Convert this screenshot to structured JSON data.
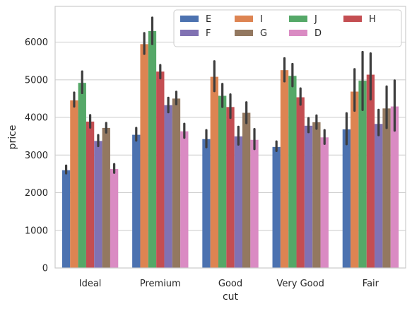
{
  "chart_data": {
    "type": "bar",
    "categories": [
      "Ideal",
      "Premium",
      "Good",
      "Very Good",
      "Fair"
    ],
    "xlabel": "cut",
    "ylabel": "price",
    "ylim": [
      0,
      6950
    ],
    "yticks": [
      0,
      1000,
      2000,
      3000,
      4000,
      5000,
      6000
    ],
    "grid": true,
    "legend_placement": "top-right",
    "legend_columns": 4,
    "series": [
      {
        "name": "E",
        "color": "#4c72b0",
        "values": [
          2598,
          3539,
          3424,
          3215,
          3682
        ],
        "ci": [
          [
            2515,
            2720
          ],
          [
            3385,
            3720
          ],
          [
            3210,
            3660
          ],
          [
            3110,
            3360
          ],
          [
            3290,
            4110
          ]
        ]
      },
      {
        "name": "I",
        "color": "#dd8452",
        "values": [
          4452,
          5947,
          5079,
          5256,
          4686
        ],
        "ci": [
          [
            4290,
            4660
          ],
          [
            5690,
            6240
          ],
          [
            4700,
            5490
          ],
          [
            4960,
            5570
          ],
          [
            4180,
            5280
          ]
        ]
      },
      {
        "name": "J",
        "color": "#55a868",
        "values": [
          4918,
          6295,
          4574,
          5104,
          4976
        ],
        "ci": [
          [
            4650,
            5220
          ],
          [
            5950,
            6650
          ],
          [
            4280,
            4890
          ],
          [
            4830,
            5420
          ],
          [
            4200,
            5740
          ]
        ]
      },
      {
        "name": "H",
        "color": "#c44e52",
        "values": [
          3889,
          5217,
          4276,
          4535,
          5136
        ],
        "ci": [
          [
            3730,
            4060
          ],
          [
            5040,
            5390
          ],
          [
            3990,
            4610
          ],
          [
            4340,
            4770
          ],
          [
            4480,
            5700
          ]
        ]
      },
      {
        "name": "F",
        "color": "#8172b3",
        "values": [
          3375,
          4325,
          3496,
          3779,
          3827
        ],
        "ci": [
          [
            3240,
            3530
          ],
          [
            4140,
            4520
          ],
          [
            3280,
            3750
          ],
          [
            3610,
            3980
          ],
          [
            3530,
            4200
          ]
        ]
      },
      {
        "name": "G",
        "color": "#937860",
        "values": [
          3721,
          4501,
          4123,
          3873,
          4239
        ],
        "ci": [
          [
            3600,
            3850
          ],
          [
            4350,
            4680
          ],
          [
            3850,
            4400
          ],
          [
            3700,
            4050
          ],
          [
            3720,
            4820
          ]
        ]
      },
      {
        "name": "D",
        "color": "#da8bc3",
        "values": [
          2629,
          3631,
          3405,
          3470,
          4291
        ],
        "ci": [
          [
            2530,
            2760
          ],
          [
            3460,
            3830
          ],
          [
            3160,
            3690
          ],
          [
            3300,
            3660
          ],
          [
            3650,
            4980
          ]
        ]
      }
    ]
  }
}
